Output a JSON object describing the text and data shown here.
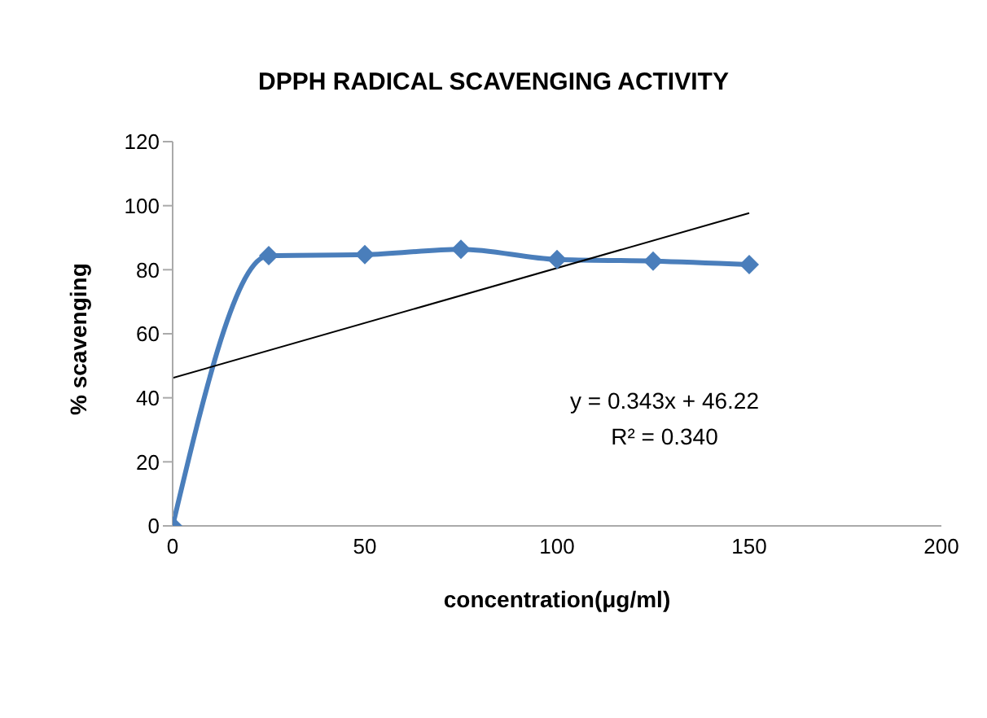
{
  "chart_data": {
    "type": "line",
    "title": "DPPH RADICAL SCAVENGING ACTIVITY",
    "xlabel": "concentration(μg/ml)",
    "ylabel": "% scavenging",
    "x": [
      0,
      25,
      50,
      75,
      100,
      125,
      150
    ],
    "series": [
      {
        "color": "#4a7ebb",
        "values": [
          0,
          84.4,
          84.7,
          86.4,
          83.2,
          82.7,
          81.6
        ],
        "marker": "diamond"
      },
      {
        "type": "line",
        "color": "#000000",
        "x": [
          0,
          150
        ],
        "values": [
          46.2,
          97.7
        ],
        "marker": "none"
      }
    ],
    "xlim": [
      0,
      200
    ],
    "xticks": [
      0,
      50,
      100,
      150,
      200
    ],
    "ylim": [
      0,
      120
    ],
    "yticks": [
      0,
      20,
      40,
      60,
      80,
      100,
      120
    ],
    "annotations": [
      "y = 0.343x + 46.22",
      "R² = 0.340"
    ]
  }
}
